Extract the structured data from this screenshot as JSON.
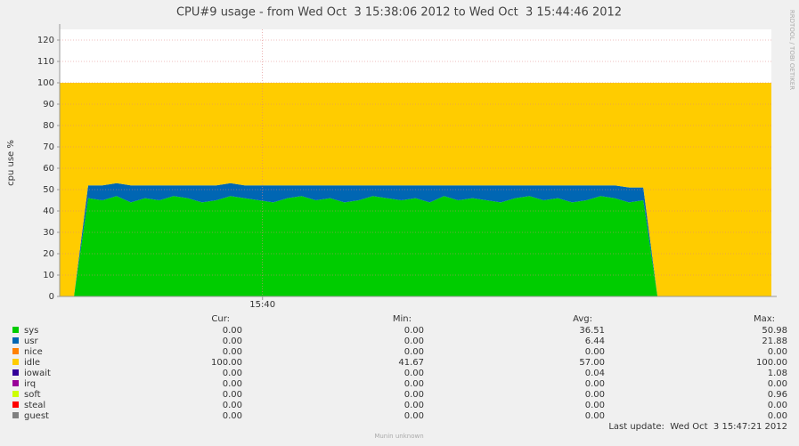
{
  "chart_data": {
    "type": "area",
    "stacked": true,
    "title": "CPU#9 usage - from Wed Oct  3 15:38:06 2012 to Wed Oct  3 15:44:46 2012",
    "y_label": "cpu use %",
    "side_label": "RRDTOOL / TOBI OETIKER",
    "footer": "Munin unknown",
    "last_update": "Last update:  Wed Oct  3 15:47:21 2012",
    "stat_headers": [
      "Cur:",
      "Min:",
      "Avg:",
      "Max:"
    ],
    "x": [
      "15:38:06",
      "15:38:14",
      "15:38:22",
      "15:38:30",
      "15:38:38",
      "15:38:46",
      "15:38:54",
      "15:39:02",
      "15:39:10",
      "15:39:18",
      "15:39:26",
      "15:39:34",
      "15:39:42",
      "15:39:50",
      "15:39:58",
      "15:40:06",
      "15:40:14",
      "15:40:22",
      "15:40:30",
      "15:40:38",
      "15:40:46",
      "15:40:54",
      "15:41:02",
      "15:41:10",
      "15:41:18",
      "15:41:26",
      "15:41:34",
      "15:41:42",
      "15:41:50",
      "15:41:58",
      "15:42:06",
      "15:42:14",
      "15:42:22",
      "15:42:30",
      "15:42:38",
      "15:42:46",
      "15:42:54",
      "15:43:02",
      "15:43:10",
      "15:43:18",
      "15:43:26",
      "15:43:34",
      "15:43:42",
      "15:43:50",
      "15:43:58",
      "15:44:06",
      "15:44:14",
      "15:44:22",
      "15:44:30",
      "15:44:38",
      "15:44:46"
    ],
    "xlim": [
      "15:38:06",
      "15:44:46"
    ],
    "xticks": [
      "15:40"
    ],
    "ylim": [
      0,
      125
    ],
    "yticks": [
      0,
      10,
      20,
      30,
      40,
      50,
      60,
      70,
      80,
      90,
      100,
      110,
      120
    ],
    "grid": true,
    "series": [
      {
        "name": "sys",
        "color": "#00cc00",
        "cur": "0.00",
        "min": "0.00",
        "avg": "36.51",
        "max": "50.98",
        "values": [
          0,
          0,
          46,
          45,
          47,
          44,
          46,
          45,
          47,
          46,
          44,
          45,
          47,
          46,
          45,
          44,
          46,
          47,
          45,
          46,
          44,
          45,
          47,
          46,
          45,
          46,
          44,
          47,
          45,
          46,
          45,
          44,
          46,
          47,
          45,
          46,
          44,
          45,
          47,
          46,
          44,
          45,
          0,
          0,
          0,
          0,
          0,
          0,
          0,
          0,
          0
        ]
      },
      {
        "name": "usr",
        "color": "#0066b3",
        "cur": "0.00",
        "min": "0.00",
        "avg": "6.44",
        "max": "21.88",
        "values": [
          0,
          0,
          6,
          7,
          6,
          8,
          6,
          7,
          5,
          6,
          8,
          7,
          6,
          6,
          7,
          8,
          6,
          5,
          7,
          6,
          8,
          7,
          5,
          6,
          7,
          6,
          8,
          5,
          7,
          6,
          7,
          8,
          6,
          5,
          7,
          6,
          8,
          7,
          5,
          6,
          7,
          6,
          0,
          0,
          0,
          0,
          0,
          0,
          0,
          0,
          0
        ]
      },
      {
        "name": "nice",
        "color": "#ff8000",
        "cur": "0.00",
        "min": "0.00",
        "avg": "0.00",
        "max": "0.00"
      },
      {
        "name": "idle",
        "color": "#ffcc00",
        "cur": "100.00",
        "min": "41.67",
        "avg": "57.00",
        "max": "100.00",
        "values": [
          100,
          100,
          48,
          48,
          47,
          48,
          48,
          48,
          48,
          48,
          48,
          48,
          47,
          48,
          48,
          48,
          48,
          48,
          48,
          48,
          48,
          48,
          48,
          48,
          48,
          48,
          48,
          48,
          48,
          48,
          48,
          48,
          48,
          48,
          48,
          48,
          48,
          48,
          48,
          48,
          49,
          49,
          100,
          100,
          100,
          100,
          100,
          100,
          100,
          100,
          100
        ]
      },
      {
        "name": "iowait",
        "color": "#330099",
        "cur": "0.00",
        "min": "0.00",
        "avg": "0.04",
        "max": "1.08"
      },
      {
        "name": "irq",
        "color": "#990099",
        "cur": "0.00",
        "min": "0.00",
        "avg": "0.00",
        "max": "0.00"
      },
      {
        "name": "soft",
        "color": "#ccff00",
        "cur": "0.00",
        "min": "0.00",
        "avg": "0.00",
        "max": "0.96"
      },
      {
        "name": "steal",
        "color": "#ff0000",
        "cur": "0.00",
        "min": "0.00",
        "avg": "0.00",
        "max": "0.00"
      },
      {
        "name": "guest",
        "color": "#808080",
        "cur": "0.00",
        "min": "0.00",
        "avg": "0.00",
        "max": "0.00"
      }
    ]
  }
}
